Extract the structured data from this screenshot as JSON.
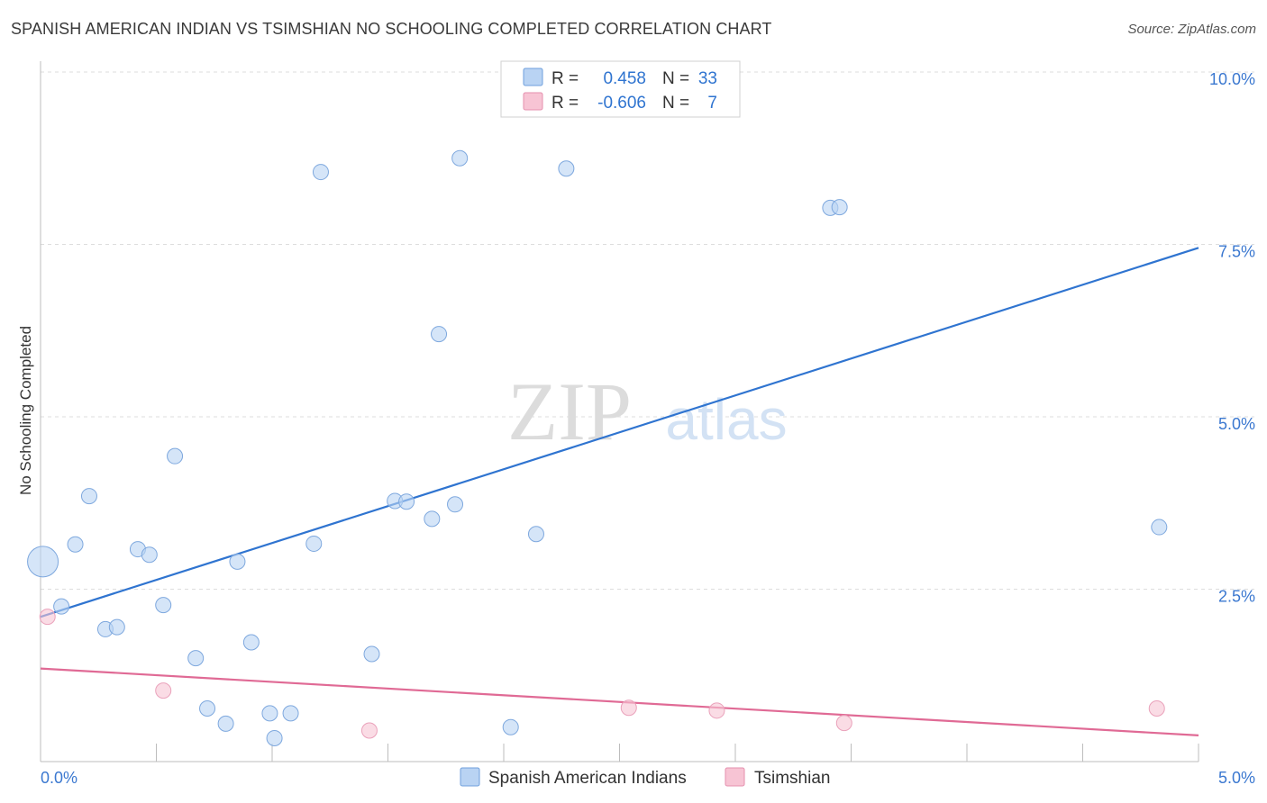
{
  "header": {
    "title": "SPANISH AMERICAN INDIAN VS TSIMSHIAN NO SCHOOLING COMPLETED CORRELATION CHART",
    "source": "Source: ZipAtlas.com"
  },
  "watermark": {
    "zip": "ZIP",
    "atlas": "atlas"
  },
  "colors": {
    "blue": "#2f74d0",
    "blue_fill": "#b9d3f3",
    "pink": "#e06a95",
    "pink_fill": "#f7c4d4",
    "value_text": "#2f74d0",
    "grid": "#dddddd"
  },
  "legend_box": {
    "rows": [
      {
        "r_label": "R =",
        "r_value": "0.458",
        "n_label": "N =",
        "n_value": "33",
        "series": "blue"
      },
      {
        "r_label": "R =",
        "r_value": "-0.606",
        "n_label": "N =",
        "n_value": "7",
        "series": "pink"
      }
    ]
  },
  "chart_data": {
    "type": "scatter",
    "title": "SPANISH AMERICAN INDIAN VS TSIMSHIAN NO SCHOOLING COMPLETED CORRELATION CHART",
    "xlabel": "",
    "ylabel": "No Schooling Completed",
    "xlim": [
      0,
      5
    ],
    "ylim": [
      0,
      10.2
    ],
    "x_tick_labels": [
      {
        "value": 0,
        "label": "0.0%"
      },
      {
        "value": 5,
        "label": "5.0%"
      }
    ],
    "y_tick_labels": [
      {
        "value": 2.5,
        "label": "2.5%"
      },
      {
        "value": 5.0,
        "label": "5.0%"
      },
      {
        "value": 7.5,
        "label": "7.5%"
      },
      {
        "value": 10.0,
        "label": "10.0%"
      }
    ],
    "legend": [
      "Spanish American Indians",
      "Tsimshian"
    ],
    "series": [
      {
        "name": "Spanish American Indians",
        "color": "blue",
        "points": [
          [
            0.01,
            2.9,
            1
          ],
          [
            0.09,
            2.25,
            0
          ],
          [
            0.15,
            3.15,
            0
          ],
          [
            0.21,
            3.85,
            0
          ],
          [
            0.28,
            1.92,
            0
          ],
          [
            0.33,
            1.95,
            0
          ],
          [
            0.42,
            3.08,
            0
          ],
          [
            0.47,
            3.0,
            0
          ],
          [
            0.53,
            2.27,
            0
          ],
          [
            0.58,
            4.43,
            0
          ],
          [
            0.67,
            1.5,
            0
          ],
          [
            0.72,
            0.77,
            0
          ],
          [
            0.8,
            0.55,
            0
          ],
          [
            0.85,
            2.9,
            0
          ],
          [
            0.91,
            1.73,
            0
          ],
          [
            0.99,
            0.7,
            0
          ],
          [
            1.01,
            0.34,
            0
          ],
          [
            1.08,
            0.7,
            0
          ],
          [
            1.18,
            3.16,
            0
          ],
          [
            1.21,
            8.55,
            0
          ],
          [
            1.43,
            1.56,
            0
          ],
          [
            1.53,
            3.78,
            0
          ],
          [
            1.58,
            3.77,
            0
          ],
          [
            1.69,
            3.52,
            0
          ],
          [
            1.72,
            6.2,
            0
          ],
          [
            1.79,
            3.73,
            0
          ],
          [
            1.81,
            8.75,
            0
          ],
          [
            2.03,
            0.5,
            0
          ],
          [
            2.14,
            3.3,
            0
          ],
          [
            2.27,
            8.6,
            0
          ],
          [
            3.41,
            8.03,
            0
          ],
          [
            3.45,
            8.04,
            0
          ],
          [
            4.83,
            3.4,
            0
          ]
        ],
        "trend": {
          "x": [
            0.0,
            5.0
          ],
          "y": [
            2.1,
            7.45
          ]
        }
      },
      {
        "name": "Tsimshian",
        "color": "pink",
        "points": [
          [
            0.03,
            2.1,
            0
          ],
          [
            0.53,
            1.03,
            0
          ],
          [
            1.42,
            0.45,
            0
          ],
          [
            2.54,
            0.78,
            0
          ],
          [
            2.92,
            0.74,
            0
          ],
          [
            3.47,
            0.56,
            0
          ],
          [
            4.82,
            0.77,
            0
          ]
        ],
        "trend": {
          "x": [
            0.0,
            5.0
          ],
          "y": [
            1.35,
            0.38
          ]
        }
      }
    ]
  }
}
